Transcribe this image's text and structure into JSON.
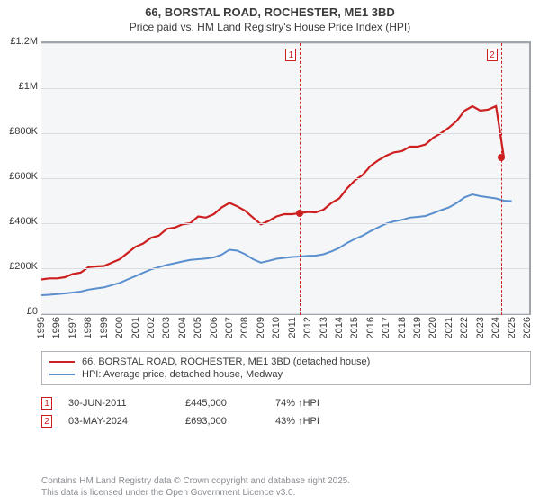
{
  "title_line1": "66, BORSTAL ROAD, ROCHESTER, ME1 3BD",
  "title_line2": "Price paid vs. HM Land Registry's House Price Index (HPI)",
  "chart": {
    "type": "line",
    "background_color": "#f5f6f8",
    "grid_color": "#dcdde2",
    "axis_color": "#a0a4ab",
    "text_color": "#3b3b3b",
    "ylim": [
      0,
      1200000
    ],
    "ytick_step": 200000,
    "ytick_labels": [
      "£0",
      "£200K",
      "£400K",
      "£600K",
      "£800K",
      "£1M",
      "£1.2M"
    ],
    "xlim": [
      1995,
      2026
    ],
    "xticks": [
      1995,
      1996,
      1997,
      1998,
      1999,
      2000,
      2001,
      2002,
      2003,
      2004,
      2005,
      2006,
      2007,
      2008,
      2009,
      2010,
      2011,
      2012,
      2013,
      2014,
      2015,
      2016,
      2017,
      2018,
      2019,
      2020,
      2021,
      2022,
      2023,
      2024,
      2025,
      2026
    ],
    "series": [
      {
        "name": "66, BORSTAL ROAD, ROCHESTER, ME1 3BD (detached house)",
        "color": "#cd1f1f",
        "line_width": 2.2,
        "data": [
          [
            1995,
            150000
          ],
          [
            1995.5,
            155000
          ],
          [
            1996,
            155000
          ],
          [
            1996.5,
            160000
          ],
          [
            1997,
            174000
          ],
          [
            1997.5,
            180000
          ],
          [
            1998,
            205000
          ],
          [
            1998.5,
            208000
          ],
          [
            1999,
            210000
          ],
          [
            1999.5,
            225000
          ],
          [
            2000,
            240000
          ],
          [
            2000.5,
            268000
          ],
          [
            2001,
            295000
          ],
          [
            2001.5,
            310000
          ],
          [
            2002,
            335000
          ],
          [
            2002.5,
            345000
          ],
          [
            2003,
            375000
          ],
          [
            2003.5,
            380000
          ],
          [
            2004,
            395000
          ],
          [
            2004.5,
            400000
          ],
          [
            2005,
            430000
          ],
          [
            2005.5,
            425000
          ],
          [
            2006,
            440000
          ],
          [
            2006.5,
            470000
          ],
          [
            2007,
            490000
          ],
          [
            2007.5,
            475000
          ],
          [
            2008,
            455000
          ],
          [
            2008.5,
            425000
          ],
          [
            2009,
            395000
          ],
          [
            2009.5,
            410000
          ],
          [
            2010,
            430000
          ],
          [
            2010.5,
            440000
          ],
          [
            2011,
            440000
          ],
          [
            2011.5,
            445000
          ],
          [
            2012,
            450000
          ],
          [
            2012.5,
            448000
          ],
          [
            2013,
            460000
          ],
          [
            2013.5,
            490000
          ],
          [
            2014,
            510000
          ],
          [
            2014.5,
            555000
          ],
          [
            2015,
            590000
          ],
          [
            2015.5,
            615000
          ],
          [
            2016,
            655000
          ],
          [
            2016.5,
            680000
          ],
          [
            2017,
            700000
          ],
          [
            2017.5,
            715000
          ],
          [
            2018,
            720000
          ],
          [
            2018.5,
            740000
          ],
          [
            2019,
            740000
          ],
          [
            2019.5,
            750000
          ],
          [
            2020,
            780000
          ],
          [
            2020.5,
            800000
          ],
          [
            2021,
            825000
          ],
          [
            2021.5,
            855000
          ],
          [
            2022,
            900000
          ],
          [
            2022.5,
            920000
          ],
          [
            2023,
            900000
          ],
          [
            2023.5,
            905000
          ],
          [
            2024,
            920000
          ],
          [
            2024.5,
            693000
          ]
        ]
      },
      {
        "name": "HPI: Average price, detached house, Medway",
        "color": "#5a8fce",
        "line_width": 2,
        "data": [
          [
            1995,
            80000
          ],
          [
            1995.5,
            82000
          ],
          [
            1996,
            85000
          ],
          [
            1996.5,
            88000
          ],
          [
            1997,
            92000
          ],
          [
            1997.5,
            96000
          ],
          [
            1998,
            105000
          ],
          [
            1998.5,
            110000
          ],
          [
            1999,
            115000
          ],
          [
            1999.5,
            125000
          ],
          [
            2000,
            135000
          ],
          [
            2000.5,
            150000
          ],
          [
            2001,
            165000
          ],
          [
            2001.5,
            180000
          ],
          [
            2002,
            195000
          ],
          [
            2002.5,
            205000
          ],
          [
            2003,
            215000
          ],
          [
            2003.5,
            222000
          ],
          [
            2004,
            230000
          ],
          [
            2004.5,
            237000
          ],
          [
            2005,
            240000
          ],
          [
            2005.5,
            243000
          ],
          [
            2006,
            248000
          ],
          [
            2006.5,
            260000
          ],
          [
            2007,
            282000
          ],
          [
            2007.5,
            278000
          ],
          [
            2008,
            262000
          ],
          [
            2008.5,
            240000
          ],
          [
            2009,
            225000
          ],
          [
            2009.5,
            233000
          ],
          [
            2010,
            242000
          ],
          [
            2010.5,
            246000
          ],
          [
            2011,
            250000
          ],
          [
            2011.5,
            252000
          ],
          [
            2012,
            255000
          ],
          [
            2012.5,
            256000
          ],
          [
            2013,
            262000
          ],
          [
            2013.5,
            275000
          ],
          [
            2014,
            290000
          ],
          [
            2014.5,
            312000
          ],
          [
            2015,
            330000
          ],
          [
            2015.5,
            345000
          ],
          [
            2016,
            365000
          ],
          [
            2016.5,
            382000
          ],
          [
            2017,
            398000
          ],
          [
            2017.5,
            408000
          ],
          [
            2018,
            415000
          ],
          [
            2018.5,
            425000
          ],
          [
            2019,
            428000
          ],
          [
            2019.5,
            432000
          ],
          [
            2020,
            445000
          ],
          [
            2020.5,
            458000
          ],
          [
            2021,
            470000
          ],
          [
            2021.5,
            490000
          ],
          [
            2022,
            515000
          ],
          [
            2022.5,
            528000
          ],
          [
            2023,
            520000
          ],
          [
            2023.5,
            515000
          ],
          [
            2024,
            510000
          ],
          [
            2024.5,
            500000
          ],
          [
            2025,
            498000
          ]
        ]
      }
    ],
    "markers": [
      {
        "n": "1",
        "x": 2011.5,
        "y": 445000,
        "color": "#cd1f1f"
      },
      {
        "n": "2",
        "x": 2024.33,
        "y": 693000,
        "color": "#cd1f1f"
      }
    ]
  },
  "legend_items": [
    "66, BORSTAL ROAD, ROCHESTER, ME1 3BD (detached house)",
    "HPI: Average price, detached house, Medway"
  ],
  "sales": [
    {
      "n": "1",
      "date": "30-JUN-2011",
      "price": "£445,000",
      "hpi": "74%",
      "hpi_label": "HPI",
      "color": "#cd1f1f"
    },
    {
      "n": "2",
      "date": "03-MAY-2024",
      "price": "£693,000",
      "hpi": "43%",
      "hpi_label": "HPI",
      "color": "#cd1f1f"
    }
  ],
  "footer_line1": "Contains HM Land Registry data © Crown copyright and database right 2025.",
  "footer_line2": "This data is licensed under the Open Government Licence v3.0."
}
